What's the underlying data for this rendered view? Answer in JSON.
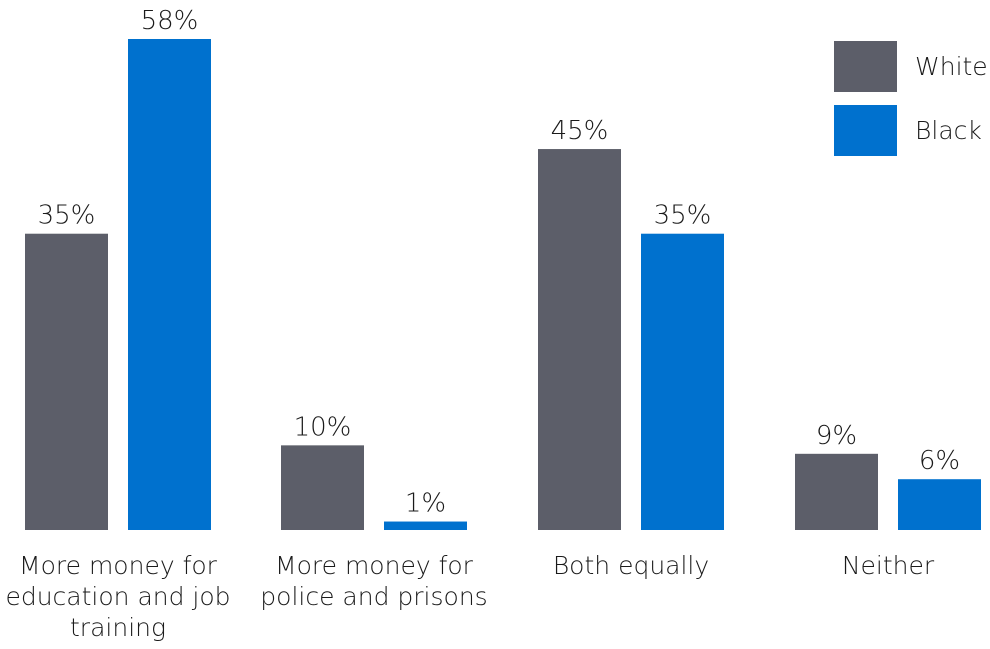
{
  "chart_data": {
    "type": "bar",
    "title": "",
    "xlabel": "",
    "ylabel": "",
    "ylim": [
      0,
      58
    ],
    "grid": false,
    "legend_placement": "top-right",
    "categories": [
      [
        "More money for",
        "education and job",
        "training"
      ],
      [
        "More money for",
        "police and prisons"
      ],
      [
        "Both equally"
      ],
      [
        "Neither"
      ]
    ],
    "series": [
      {
        "name": "White",
        "color": "#5c5e69",
        "values": [
          35,
          10,
          45,
          9
        ],
        "labels": [
          "35%",
          "10%",
          "45%",
          "9%"
        ]
      },
      {
        "name": "Black",
        "color": "#0071ce",
        "values": [
          58,
          1,
          35,
          6
        ],
        "labels": [
          "58%",
          "1%",
          "35%",
          "6%"
        ]
      }
    ]
  }
}
